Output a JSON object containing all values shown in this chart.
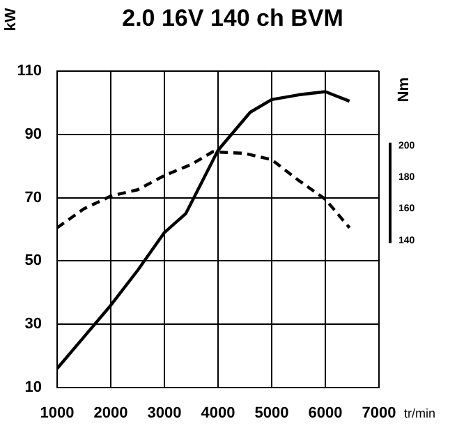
{
  "chart_data": {
    "type": "line",
    "title": "2.0 16V 140 ch BVM",
    "xlabel": "tr/min",
    "ylabel": "kW",
    "y2label": "Nm",
    "xlim": [
      1000,
      7000
    ],
    "xticks": [
      1000,
      2000,
      3000,
      4000,
      5000,
      6000,
      7000
    ],
    "ylim": [
      10,
      110
    ],
    "yticks": [
      10,
      30,
      50,
      70,
      90,
      110
    ],
    "y2lim": [
      47,
      247
    ],
    "y2ticks": [
      140,
      160,
      180,
      200
    ],
    "series": [
      {
        "color": "#000000",
        "line_style": "solid",
        "x": [
          1000,
          1500,
          2000,
          2500,
          3000,
          3400,
          4000,
          4600,
          5000,
          5500,
          6000,
          6450
        ],
        "values": [
          16,
          26,
          36,
          47,
          59,
          65,
          85,
          97,
          101,
          102.5,
          103.5,
          100.5
        ]
      },
      {
        "color": "#000000",
        "line_style": "dashed",
        "axis": "y2",
        "x": [
          1000,
          1500,
          2000,
          2500,
          3000,
          3500,
          3900,
          4500,
          5000,
          5500,
          6000,
          6450
        ],
        "values": [
          148,
          160,
          168,
          172,
          181,
          188,
          196,
          195,
          191,
          178,
          166,
          148
        ]
      }
    ],
    "grid": true,
    "legend": false,
    "marker": "none"
  }
}
